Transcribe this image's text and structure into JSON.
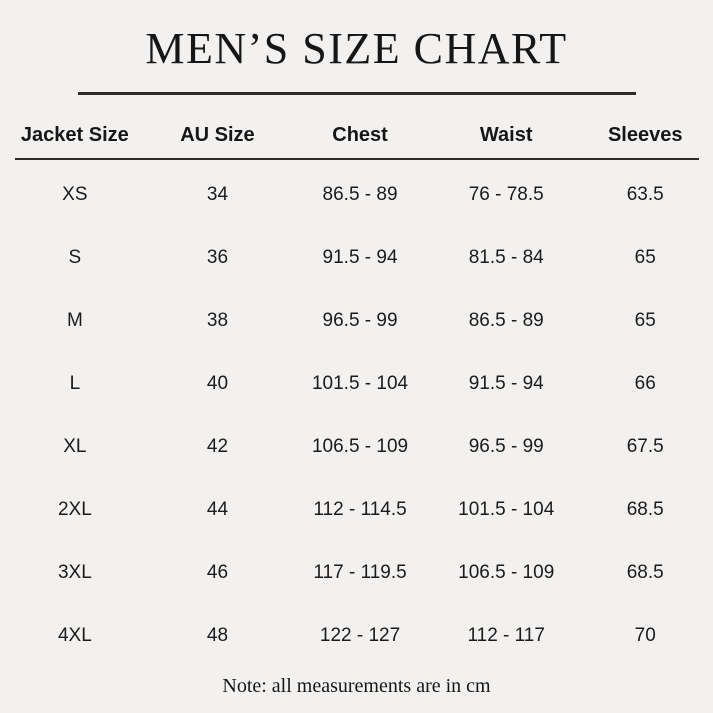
{
  "page": {
    "background": "#f2f1f0",
    "text_color": "#1b1b1b",
    "rule_color": "#2e2c2a"
  },
  "chart_data": {
    "type": "table",
    "title": "MEN’S SIZE CHART",
    "columns": [
      "Jacket Size",
      "AU Size",
      "Chest",
      "Waist",
      "Sleeves"
    ],
    "rows": [
      [
        "XS",
        "34",
        "86.5 - 89",
        "76 - 78.5",
        "63.5"
      ],
      [
        "S",
        "36",
        "91.5 - 94",
        "81.5 - 84",
        "65"
      ],
      [
        "M",
        "38",
        "96.5 - 99",
        "86.5 - 89",
        "65"
      ],
      [
        "L",
        "40",
        "101.5 - 104",
        "91.5 - 94",
        "66"
      ],
      [
        "XL",
        "42",
        "106.5 - 109",
        "96.5 - 99",
        "67.5"
      ],
      [
        "2XL",
        "44",
        "112 - 114.5",
        "101.5 - 104",
        "68.5"
      ],
      [
        "3XL",
        "46",
        "117 - 119.5",
        "106.5 - 109",
        "68.5"
      ],
      [
        "4XL",
        "48",
        "122 - 127",
        "112 - 117",
        "70"
      ]
    ],
    "note": "Note: all measurements are in cm"
  }
}
